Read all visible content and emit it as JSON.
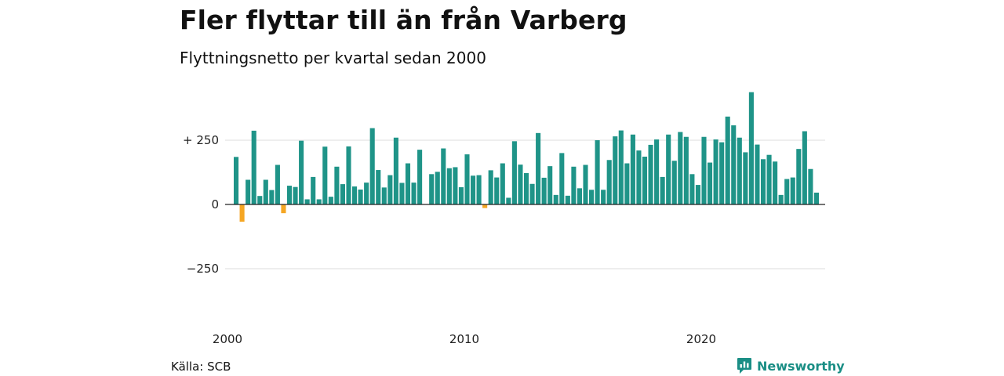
{
  "header": {
    "title": "Fler flyttar till än från Varberg",
    "subtitle": "Flyttningsnetto per kvartal sedan 2000"
  },
  "footer": {
    "source": "Källa: SCB",
    "brand": "Newsworthy"
  },
  "colors": {
    "positive": "#1f9488",
    "negative": "#f5a623",
    "grid": "#dedede",
    "zero_line": "#222222",
    "brand": "#1a8e85"
  },
  "icons": {
    "brand_logo": "newsworthy-logo-icon"
  },
  "chart_data": {
    "type": "bar",
    "title": "Fler flyttar till än från Varberg",
    "subtitle": "Flyttningsnetto per kvartal sedan 2000",
    "x_start": "2000 Q1",
    "frequency": "quarter",
    "xticks": [
      "2000",
      "2010",
      "2020"
    ],
    "yticks": [
      {
        "value": 250,
        "label": "+ 250"
      },
      {
        "value": 0,
        "label": "0"
      },
      {
        "value": -250,
        "label": "−250"
      }
    ],
    "ylim": [
      -390,
      440
    ],
    "grid": true,
    "legend": "none",
    "values": [
      185,
      -67,
      96,
      287,
      33,
      96,
      56,
      154,
      -34,
      73,
      68,
      248,
      20,
      107,
      20,
      225,
      30,
      147,
      79,
      226,
      70,
      58,
      85,
      297,
      134,
      66,
      114,
      260,
      84,
      160,
      85,
      213,
      null,
      118,
      127,
      218,
      141,
      145,
      67,
      195,
      112,
      114,
      -14,
      133,
      105,
      160,
      26,
      246,
      155,
      122,
      80,
      278,
      104,
      149,
      37,
      200,
      34,
      147,
      63,
      154,
      57,
      250,
      57,
      173,
      265,
      288,
      160,
      272,
      210,
      186,
      232,
      253,
      107,
      272,
      170,
      282,
      263,
      118,
      76,
      263,
      163,
      253,
      242,
      342,
      308,
      260,
      203,
      437,
      233,
      176,
      193,
      167,
      37,
      99,
      105,
      216,
      285,
      138,
      46
    ]
  }
}
